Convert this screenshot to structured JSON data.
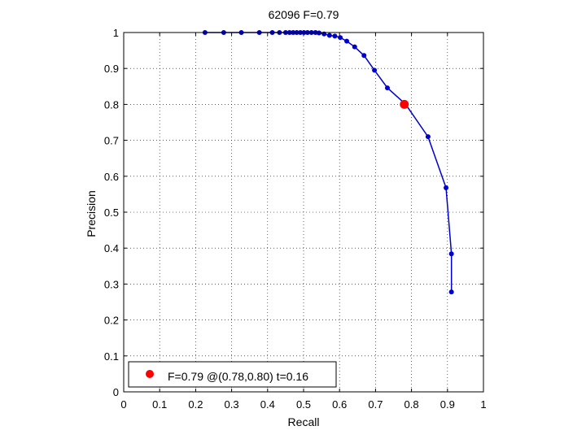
{
  "chart_data": {
    "type": "line",
    "title": "62096 F=0.79",
    "xlabel": "Recall",
    "ylabel": "Precision",
    "xlim": [
      0,
      1
    ],
    "ylim": [
      0,
      1
    ],
    "xticks": [
      "0",
      "0.1",
      "0.2",
      "0.3",
      "0.4",
      "0.5",
      "0.6",
      "0.7",
      "0.8",
      "0.9",
      "1"
    ],
    "yticks": [
      "0",
      "0.1",
      "0.2",
      "0.3",
      "0.4",
      "0.5",
      "0.6",
      "0.7",
      "0.8",
      "0.9",
      "1"
    ],
    "grid": true,
    "legend_position": "bottom-left",
    "series": [
      {
        "color": "#0000cc",
        "marker": "dot",
        "points": [
          [
            0.226,
            1.0
          ],
          [
            0.278,
            1.0
          ],
          [
            0.327,
            1.0
          ],
          [
            0.377,
            1.0
          ],
          [
            0.413,
            1.0
          ],
          [
            0.433,
            1.0
          ],
          [
            0.45,
            1.0
          ],
          [
            0.461,
            1.0
          ],
          [
            0.471,
            1.0
          ],
          [
            0.481,
            1.0
          ],
          [
            0.491,
            1.0
          ],
          [
            0.501,
            1.0
          ],
          [
            0.511,
            1.0
          ],
          [
            0.522,
            1.0
          ],
          [
            0.533,
            1.0
          ],
          [
            0.543,
            0.999
          ],
          [
            0.557,
            0.996
          ],
          [
            0.572,
            0.992
          ],
          [
            0.587,
            0.99
          ],
          [
            0.602,
            0.986
          ],
          [
            0.62,
            0.976
          ],
          [
            0.642,
            0.96
          ],
          [
            0.668,
            0.936
          ],
          [
            0.697,
            0.895
          ],
          [
            0.733,
            0.846
          ],
          [
            0.784,
            0.8
          ],
          [
            0.846,
            0.71
          ],
          [
            0.896,
            0.568
          ],
          [
            0.911,
            0.384
          ],
          [
            0.911,
            0.278
          ]
        ]
      }
    ],
    "highlight": {
      "label": "F=0.79 @(0.78,0.80) t=0.16",
      "x": 0.78,
      "y": 0.8,
      "color": "#ff0000"
    }
  }
}
